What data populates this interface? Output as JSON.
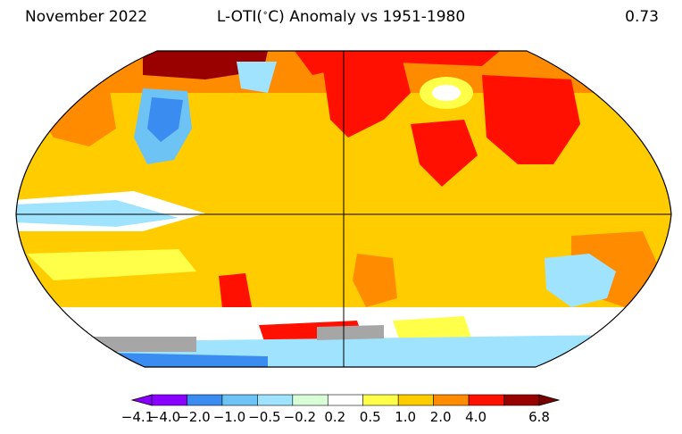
{
  "header": {
    "date": "November 2022",
    "title": "L-OTI(°C) Anomaly vs 1951-1980",
    "global_mean": "0.73"
  },
  "colorbar": {
    "labels": [
      "−4.1",
      "−4.0",
      "−2.0",
      "−1.0",
      "−0.5",
      "−0.2",
      "0.2",
      "0.5",
      "1.0",
      "2.0",
      "4.0",
      "6.8"
    ],
    "colors": [
      "#8a00ff",
      "#3a8cf0",
      "#6ec3f5",
      "#9fe3ff",
      "#d8ffd8",
      "#ffffff",
      "#ffff4a",
      "#ffcc00",
      "#ff8c00",
      "#ff1000",
      "#990000"
    ],
    "extend_low_color": "#8a00ff",
    "extend_high_color": "#7a0000"
  },
  "map": {
    "projection": "Robinson",
    "missing_data_color": "#a6a6a6",
    "base_color": "#ffcc00"
  }
}
